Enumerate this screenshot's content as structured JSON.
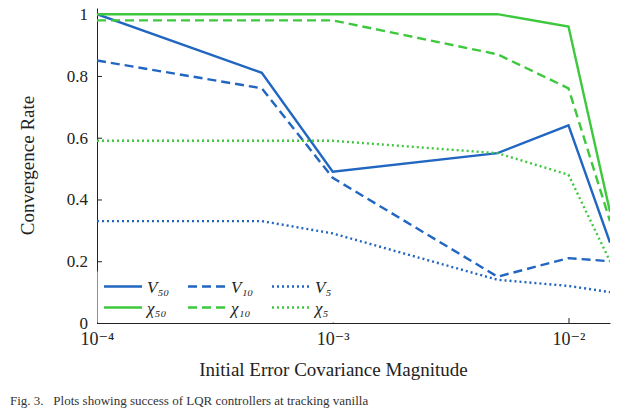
{
  "chart_data": {
    "type": "line",
    "x_label": "Initial Error Covariance Magnitude",
    "y_label": "Convergence Rate",
    "caption": "Fig. 3.   Plots showing success of LQR controllers at tracking vanilla",
    "log": "x",
    "x": [
      0.0001,
      0.0005,
      0.001,
      0.005,
      0.01,
      0.015
    ],
    "xlim": [
      0.0001,
      0.015
    ],
    "xticks": [
      {
        "value": 0.0001,
        "label": "10⁻⁴"
      },
      {
        "value": 0.001,
        "label": "10⁻³"
      },
      {
        "value": 0.01,
        "label": "10⁻²"
      }
    ],
    "ylim": [
      0,
      1.02
    ],
    "yticks": [
      0,
      0.2,
      0.4,
      0.6,
      0.8,
      1
    ],
    "grid": false,
    "legend": "lower left",
    "series": [
      {
        "name": "V₅₀",
        "color": "#2166c0",
        "line_style": "solid",
        "values": [
          1,
          0.81,
          0.49,
          0.55,
          0.64,
          0.26
        ]
      },
      {
        "name": "V₁₀",
        "color": "#2166c0",
        "line_style": "dashed",
        "values": [
          0.85,
          0.76,
          0.47,
          0.15,
          0.21,
          0.2
        ]
      },
      {
        "name": "V₅",
        "color": "#2166c0",
        "line_style": "dotted",
        "values": [
          0.33,
          0.33,
          0.29,
          0.14,
          0.12,
          0.1
        ]
      },
      {
        "name": "χ₅₀",
        "color": "#3dc83d",
        "line_style": "solid",
        "values": [
          1,
          1,
          1,
          1,
          0.96,
          0.36
        ]
      },
      {
        "name": "χ₁₀",
        "color": "#3dc83d",
        "line_style": "dashed",
        "values": [
          0.98,
          0.98,
          0.98,
          0.87,
          0.76,
          0.33
        ]
      },
      {
        "name": "χ₅",
        "color": "#3dc83d",
        "line_style": "dotted",
        "values": [
          0.59,
          0.59,
          0.59,
          0.55,
          0.48,
          0.2
        ]
      }
    ]
  }
}
